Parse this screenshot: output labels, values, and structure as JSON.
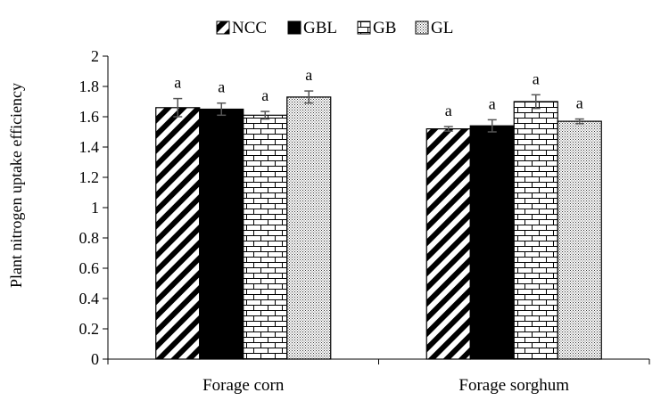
{
  "chart_data": {
    "type": "bar",
    "title": "",
    "xlabel": "",
    "ylabel": "Plant nitrogen uptake efficiency",
    "ylim": [
      0,
      2
    ],
    "yticks": [
      "0",
      "0.2",
      "0.4",
      "0.6",
      "0.8",
      "1",
      "1.2",
      "1.4",
      "1.6",
      "1.8",
      "2"
    ],
    "grid": false,
    "legend_position": "top",
    "categories": [
      "Forage corn",
      "Forage sorghum"
    ],
    "series": [
      {
        "name": "NCC",
        "pattern": "diagonal-stripes",
        "values": [
          1.66,
          1.52
        ],
        "errors": [
          0.06,
          0.015
        ],
        "labels": [
          "a",
          "a"
        ]
      },
      {
        "name": "GBL",
        "pattern": "solid-black",
        "values": [
          1.65,
          1.54
        ],
        "errors": [
          0.04,
          0.04
        ],
        "labels": [
          "a",
          "a"
        ]
      },
      {
        "name": "GB",
        "pattern": "brick",
        "values": [
          1.61,
          1.7
        ],
        "errors": [
          0.025,
          0.045
        ],
        "labels": [
          "a",
          "a"
        ]
      },
      {
        "name": "GL",
        "pattern": "dotted",
        "values": [
          1.73,
          1.57
        ],
        "errors": [
          0.04,
          0.015
        ],
        "labels": [
          "a",
          "a"
        ]
      }
    ]
  }
}
